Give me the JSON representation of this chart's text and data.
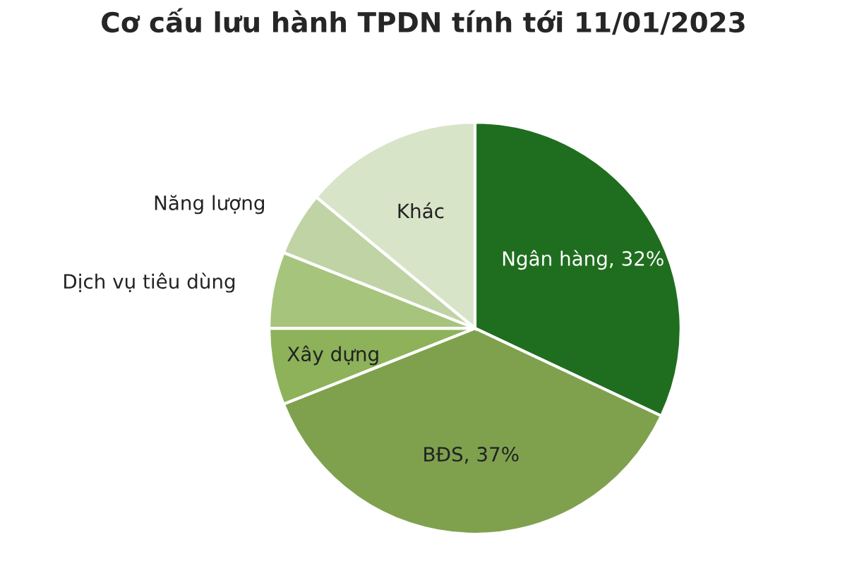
{
  "chart_data": {
    "type": "pie",
    "title": "Cơ cấu lưu hành TPDN tính tới 11/01/2023",
    "categories": [
      "Ngân hàng",
      "BĐS",
      "Xây dựng",
      "Dịch vụ tiêu dùng",
      "Năng lượng",
      "Khác"
    ],
    "values": [
      32,
      37,
      6,
      6,
      5,
      14
    ],
    "value_labels": [
      "32%",
      "37%",
      null,
      null,
      null,
      null
    ],
    "colors": [
      "#1f6e1f",
      "#7fa14e",
      "#8db25a",
      "#a6c47c",
      "#c0d3a5",
      "#d8e4c8"
    ]
  }
}
